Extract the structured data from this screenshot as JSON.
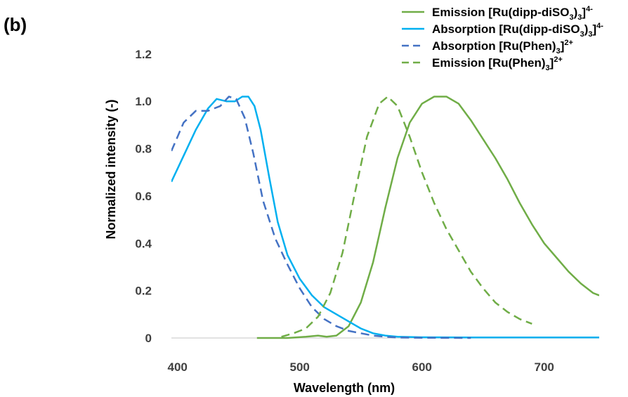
{
  "panel_label": "(b)",
  "chart_data": {
    "type": "line",
    "xlabel": "Wavelength (nm)",
    "ylabel": "Normalized intensity (-)",
    "xlim": [
      395,
      745
    ],
    "ylim": [
      0,
      1.25
    ],
    "x_ticks": [
      400,
      500,
      600,
      700
    ],
    "x_tick_labels": [
      "400",
      "500",
      "600",
      "700"
    ],
    "y_ticks": [
      0,
      0.2,
      0.4,
      0.6,
      0.8,
      1.0,
      1.2
    ],
    "y_tick_labels": [
      "0",
      "0.2",
      "0.4",
      "0.6",
      "0.8",
      "1.0",
      "1.2"
    ],
    "grid": false,
    "legend_position": "top-right",
    "series": [
      {
        "name": "Emission [Ru(dipp-diSO3)3]4-",
        "legend": {
          "prefix": "Emission [Ru(dipp-diSO",
          "sub1": "3",
          "mid": ")",
          "sub2": "3",
          "close": "]",
          "sup": "4-"
        },
        "color": "#70ad47",
        "dash": "solid",
        "x": [
          465,
          490,
          505,
          515,
          522,
          530,
          540,
          550,
          560,
          570,
          580,
          590,
          600,
          610,
          620,
          630,
          640,
          650,
          660,
          670,
          680,
          690,
          700,
          710,
          720,
          730,
          740,
          745
        ],
        "y": [
          0.0,
          0.0,
          0.005,
          0.01,
          0.005,
          0.01,
          0.05,
          0.15,
          0.32,
          0.55,
          0.76,
          0.91,
          0.99,
          1.02,
          1.02,
          0.99,
          0.92,
          0.84,
          0.76,
          0.67,
          0.57,
          0.48,
          0.4,
          0.34,
          0.28,
          0.23,
          0.19,
          0.18
        ]
      },
      {
        "name": "Absorption [Ru(dipp-diSO3)3]4-",
        "legend": {
          "prefix": "Absorption [Ru(dipp-diSO",
          "sub1": "3",
          "mid": ")",
          "sub2": "3",
          "close": "]",
          "sup": "4-"
        },
        "color": "#00b0f0",
        "dash": "solid",
        "x": [
          395,
          405,
          415,
          425,
          432,
          440,
          447,
          453,
          458,
          463,
          468,
          475,
          482,
          490,
          500,
          510,
          520,
          530,
          540,
          550,
          560,
          570,
          580,
          600,
          640,
          700,
          745
        ],
        "y": [
          0.66,
          0.77,
          0.88,
          0.97,
          1.01,
          1.0,
          1.0,
          1.02,
          1.02,
          0.98,
          0.88,
          0.68,
          0.49,
          0.35,
          0.25,
          0.18,
          0.13,
          0.1,
          0.07,
          0.04,
          0.02,
          0.01,
          0.005,
          0.003,
          0.002,
          0.002,
          0.002
        ]
      },
      {
        "name": "Absorption [Ru(Phen)3]2+",
        "legend": {
          "prefix": "Absorption [Ru(Phen)",
          "sub1": "3",
          "mid": "",
          "sub2": "",
          "close": "]",
          "sup": "2+"
        },
        "color": "#4472c4",
        "dash": "dashed",
        "x": [
          395,
          405,
          415,
          425,
          435,
          442,
          448,
          455,
          462,
          470,
          480,
          490,
          500,
          510,
          520,
          530,
          540,
          550,
          560,
          570,
          580,
          600,
          640
        ],
        "y": [
          0.79,
          0.91,
          0.96,
          0.96,
          0.98,
          1.02,
          1.01,
          0.93,
          0.78,
          0.58,
          0.42,
          0.31,
          0.21,
          0.13,
          0.08,
          0.05,
          0.03,
          0.02,
          0.01,
          0.005,
          0.002,
          0.001,
          0.0
        ]
      },
      {
        "name": "Emission [Ru(Phen)3]2+",
        "legend": {
          "prefix": "Emission [Ru(Phen)",
          "sub1": "3",
          "mid": "",
          "sub2": "",
          "close": "]",
          "sup": "2+"
        },
        "color": "#70ad47",
        "dash": "dashed",
        "x": [
          485,
          495,
          505,
          515,
          525,
          535,
          545,
          555,
          565,
          572,
          580,
          590,
          600,
          610,
          620,
          630,
          640,
          650,
          660,
          670,
          680,
          690
        ],
        "y": [
          0.005,
          0.02,
          0.04,
          0.09,
          0.19,
          0.36,
          0.61,
          0.85,
          0.99,
          1.02,
          0.98,
          0.85,
          0.7,
          0.57,
          0.46,
          0.37,
          0.28,
          0.21,
          0.15,
          0.11,
          0.08,
          0.06
        ]
      }
    ]
  }
}
